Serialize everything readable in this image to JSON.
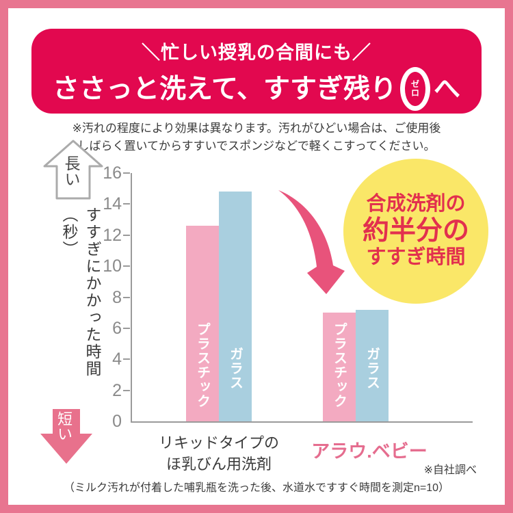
{
  "page": {
    "border_color": "#E87590",
    "background": "#FFFFFF"
  },
  "banner": {
    "bg_color": "#E2084F",
    "tagline": "＼忙しい授乳の合間にも／",
    "headline_prefix": "ささっと洗えて、すすぎ残り",
    "zero_symbol_furigana_top": "ゼ",
    "zero_symbol_furigana_bottom": "ロ",
    "headline_suffix": "へ"
  },
  "disclaimer": {
    "line1": "※汚れの程度により効果は異なります。汚れがひどい場合は、ご使用後",
    "line2": "しばらく置いてからすすいでスポンジなどで軽くこすってください。"
  },
  "axis_labels": {
    "long": "長い",
    "short": "短い",
    "ylabel": "すすぎにかかった時間（秒）"
  },
  "chart_data": {
    "type": "bar",
    "title": "",
    "xlabel": "",
    "ylabel": "すすぎにかかった時間（秒）",
    "ylim": [
      0,
      16
    ],
    "yticks": [
      0,
      2,
      4,
      6,
      8,
      10,
      12,
      14,
      16
    ],
    "grid": false,
    "legend_position": "labels-inside-bars",
    "categories": [
      "リキッドタイプのほ乳びん用洗剤",
      "アラウ.ベビー"
    ],
    "series": [
      {
        "name": "プラスチック",
        "values": [
          12.6,
          7.0
        ],
        "color": "#F3AAC1"
      },
      {
        "name": "ガラス",
        "values": [
          14.8,
          7.2
        ],
        "color": "#A9CFDF"
      }
    ],
    "annotation": "合成洗剤の約半分のすすぎ時間"
  },
  "callout": {
    "bg_color": "#FAE768",
    "text_color": "#E2304E",
    "line1": "合成洗剤の",
    "line2": "約半分の",
    "line3": "すすぎ時間"
  },
  "category_labels": {
    "group1_line1": "リキッドタイプの",
    "group1_line2": "ほ乳びん用洗剤",
    "group2": "アラウ.ベビー",
    "group2_color": "#E56D8F"
  },
  "footnotes": {
    "source": "※自社調べ",
    "method": "（ミルク汚れが付着した哺乳瓶を洗った後、水道水ですすぐ時間を測定n=10）"
  }
}
